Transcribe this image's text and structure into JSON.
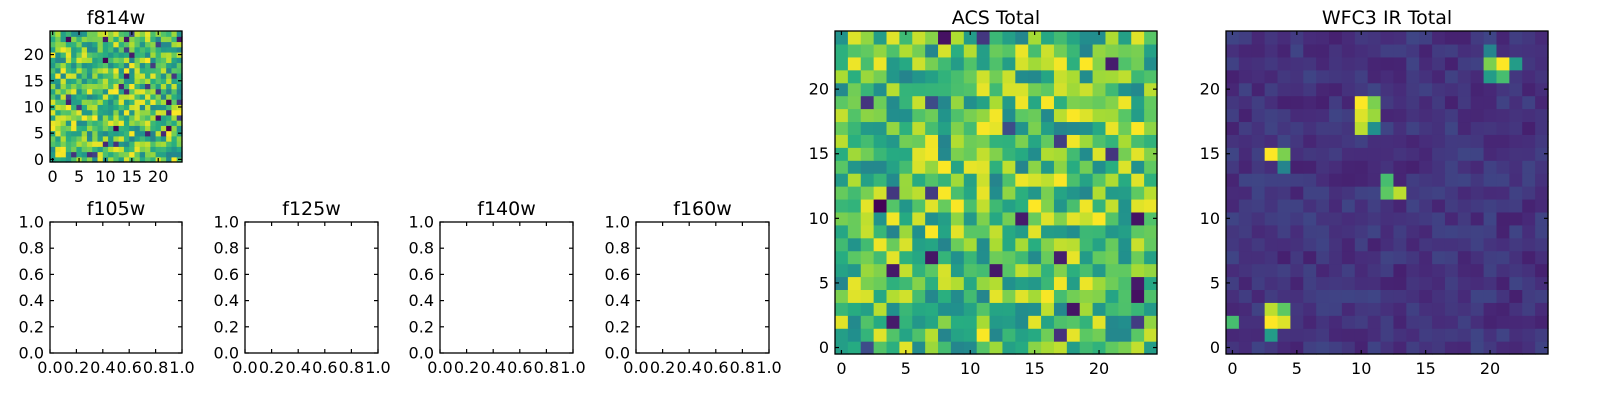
{
  "chart_data": [
    {
      "type": "heatmap",
      "title": "f814w",
      "grid_size": [
        25,
        25
      ],
      "colormap": "viridis",
      "xticks": [
        0,
        5,
        10,
        15,
        20
      ],
      "yticks": [
        0,
        5,
        10,
        15,
        20
      ],
      "pattern": "uniform noise, mostly green-yellow with scattered dark pixels"
    },
    {
      "type": "heatmap",
      "title": "f105w",
      "empty": true,
      "xticks": [
        "0.0",
        "0.2",
        "0.4",
        "0.6",
        "0.8",
        "1.0"
      ],
      "yticks": [
        "0.0",
        "0.2",
        "0.4",
        "0.6",
        "0.8",
        "1.0"
      ]
    },
    {
      "type": "heatmap",
      "title": "f125w",
      "empty": true,
      "xticks": [
        "0.0",
        "0.2",
        "0.4",
        "0.6",
        "0.8",
        "1.0"
      ],
      "yticks": [
        "0.0",
        "0.2",
        "0.4",
        "0.6",
        "0.8",
        "1.0"
      ]
    },
    {
      "type": "heatmap",
      "title": "f140w",
      "empty": true,
      "xticks": [
        "0.0",
        "0.2",
        "0.4",
        "0.6",
        "0.8",
        "1.0"
      ],
      "yticks": [
        "0.0",
        "0.2",
        "0.4",
        "0.6",
        "0.8",
        "1.0"
      ]
    },
    {
      "type": "heatmap",
      "title": "f160w",
      "empty": true,
      "xticks": [
        "0.0",
        "0.2",
        "0.4",
        "0.6",
        "0.8",
        "1.0"
      ],
      "yticks": [
        "0.0",
        "0.2",
        "0.4",
        "0.6",
        "0.8",
        "1.0"
      ]
    },
    {
      "type": "heatmap",
      "title": "ACS Total",
      "grid_size": [
        25,
        25
      ],
      "colormap": "viridis",
      "xticks": [
        0,
        5,
        10,
        15,
        20
      ],
      "yticks": [
        0,
        5,
        10,
        15,
        20
      ],
      "pattern": "uniform noise, mostly green-yellow with scattered dark pixels"
    },
    {
      "type": "heatmap",
      "title": "WFC3 IR Total",
      "grid_size": [
        25,
        25
      ],
      "colormap": "viridis",
      "xticks": [
        0,
        5,
        10,
        15,
        20
      ],
      "yticks": [
        0,
        5,
        10,
        15,
        20
      ],
      "background_level": 0.15,
      "hotspots": [
        {
          "x": 3,
          "y": 2,
          "value": 1.0
        },
        {
          "x": 4,
          "y": 2,
          "value": 0.95
        },
        {
          "x": 3,
          "y": 3,
          "value": 0.9
        },
        {
          "x": 4,
          "y": 3,
          "value": 0.75
        },
        {
          "x": 0,
          "y": 2,
          "value": 0.7
        },
        {
          "x": 3,
          "y": 1,
          "value": 0.55
        },
        {
          "x": 3,
          "y": 15,
          "value": 1.0
        },
        {
          "x": 4,
          "y": 15,
          "value": 0.8
        },
        {
          "x": 4,
          "y": 14,
          "value": 0.45
        },
        {
          "x": 10,
          "y": 19,
          "value": 1.0
        },
        {
          "x": 11,
          "y": 19,
          "value": 0.8
        },
        {
          "x": 10,
          "y": 18,
          "value": 0.95
        },
        {
          "x": 11,
          "y": 18,
          "value": 0.85
        },
        {
          "x": 10,
          "y": 17,
          "value": 0.9
        },
        {
          "x": 11,
          "y": 17,
          "value": 0.5
        },
        {
          "x": 12,
          "y": 12,
          "value": 0.75
        },
        {
          "x": 13,
          "y": 12,
          "value": 0.9
        },
        {
          "x": 12,
          "y": 13,
          "value": 0.7
        },
        {
          "x": 20,
          "y": 22,
          "value": 0.8
        },
        {
          "x": 21,
          "y": 22,
          "value": 1.0
        },
        {
          "x": 20,
          "y": 21,
          "value": 0.55
        },
        {
          "x": 21,
          "y": 21,
          "value": 0.7
        },
        {
          "x": 20,
          "y": 23,
          "value": 0.45
        },
        {
          "x": 22,
          "y": 22,
          "value": 0.55
        }
      ]
    }
  ]
}
